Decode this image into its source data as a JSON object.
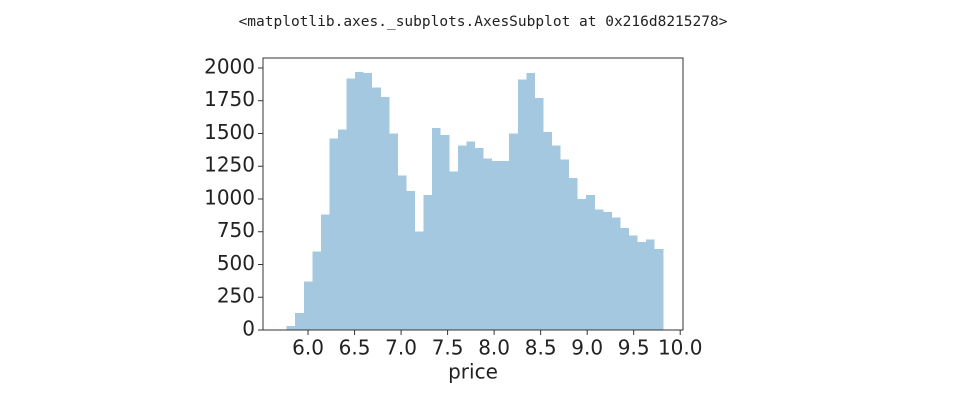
{
  "cell_output": "<matplotlib.axes._subplots.AxesSubplot at 0x216d8215278>",
  "chart_data": {
    "type": "histogram",
    "xlabel": "price",
    "color": "#a5c8e1",
    "bins": [
      5.77,
      5.862,
      5.954,
      6.046,
      6.138,
      6.23,
      6.322,
      6.414,
      6.506,
      6.598,
      6.69,
      6.782,
      6.874,
      6.966,
      7.058,
      7.15,
      7.242,
      7.334,
      7.426,
      7.518,
      7.61,
      7.702,
      7.794,
      7.886,
      7.978,
      8.07,
      8.162,
      8.254,
      8.346,
      8.438,
      8.53,
      8.622,
      8.714,
      8.806,
      8.898,
      8.99,
      9.082,
      9.174,
      9.266,
      9.358,
      9.45,
      9.542,
      9.634,
      9.726,
      9.818
    ],
    "values": [
      30,
      130,
      370,
      600,
      880,
      1460,
      1530,
      1920,
      1970,
      1960,
      1850,
      1780,
      1500,
      1180,
      1060,
      750,
      1030,
      1540,
      1490,
      1210,
      1410,
      1440,
      1390,
      1310,
      1290,
      1290,
      1500,
      1910,
      1960,
      1770,
      1510,
      1410,
      1300,
      1160,
      1000,
      1030,
      920,
      900,
      860,
      780,
      720,
      670,
      690,
      620
    ],
    "xlim": [
      5.516,
      10.03
    ],
    "ylim": [
      0,
      2076
    ],
    "xticks": [
      {
        "value": 6,
        "label": "6.0"
      },
      {
        "value": 6.5,
        "label": "6.5"
      },
      {
        "value": 7,
        "label": "7.0"
      },
      {
        "value": 7.5,
        "label": "7.5"
      },
      {
        "value": 8,
        "label": "8.0"
      },
      {
        "value": 8.5,
        "label": "8.5"
      },
      {
        "value": 9,
        "label": "9.0"
      },
      {
        "value": 9.5,
        "label": "9.5"
      },
      {
        "value": 10,
        "label": "10.0"
      }
    ],
    "yticks": [
      0,
      250,
      500,
      750,
      1000,
      1250,
      1500,
      1750,
      2000
    ]
  }
}
